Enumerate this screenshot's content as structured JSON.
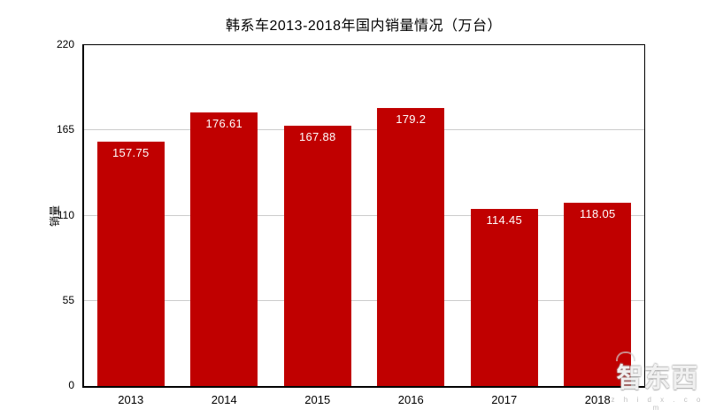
{
  "chart_data": {
    "type": "bar",
    "title": "韩系车2013-2018年国内销量情况（万台）",
    "xlabel": "",
    "ylabel": "销量",
    "categories": [
      "2013",
      "2014",
      "2015",
      "2016",
      "2017",
      "2018"
    ],
    "values": [
      157.75,
      176.61,
      167.88,
      179.2,
      114.45,
      118.05
    ],
    "value_labels": [
      "157.75",
      "176.61",
      "167.88",
      "179.2",
      "114.45",
      "118.05"
    ],
    "ylim": [
      0,
      220
    ],
    "yticks": [
      0,
      55,
      110,
      165,
      220
    ],
    "gridlines": [
      55,
      110,
      165
    ],
    "legend": "none",
    "grid": "horizontal",
    "bar_color": "#c00000",
    "value_label_color": "#ffffff",
    "gridline_color": "#cccccc",
    "axis_color": "#000000"
  },
  "watermark": {
    "brand": "智东西",
    "tagline": "z h i d x . c o m"
  }
}
